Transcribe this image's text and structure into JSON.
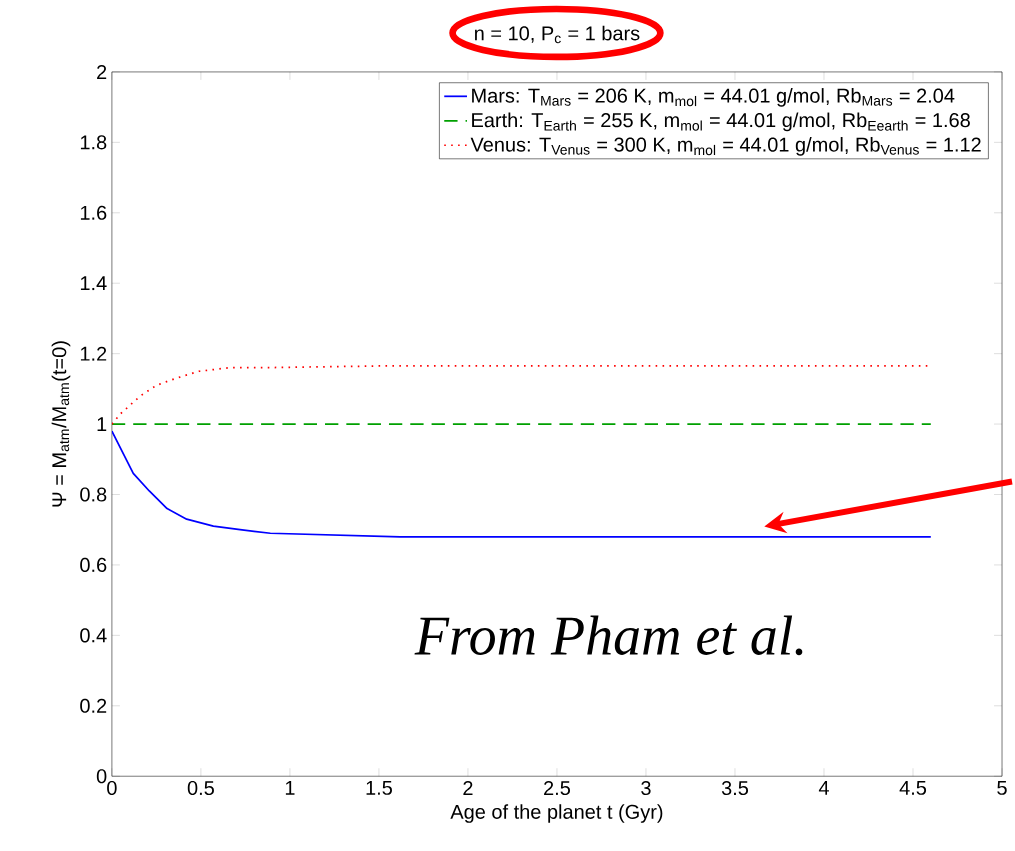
{
  "chart_data": {
    "type": "line",
    "title": "n = 10, P$_{c}$ = 1 bars",
    "xlabel": "Age of the planet t (Gyr)",
    "ylabel": "Ψ = M$_{atm}$/M$_{atm}$(t=0)",
    "xlim": [
      0,
      5
    ],
    "ylim": [
      0,
      2
    ],
    "xticks": [
      0,
      0.5,
      1,
      1.5,
      2,
      2.5,
      3,
      3.5,
      4,
      4.5,
      5
    ],
    "yticks": [
      0,
      0.2,
      0.4,
      0.6,
      0.8,
      1,
      1.2,
      1.4,
      1.6,
      1.8,
      2
    ],
    "legend": "top right",
    "series": [
      {
        "name": "Mars: T$_{Mars}$ = 206 K, m$_{mol}$ = 44.01 g/mol, Rb$_{Mars}$ = 2.04",
        "color": "#0000ff",
        "line_style": "solid",
        "x": [
          0,
          0.12,
          0.21,
          0.31,
          0.42,
          0.57,
          0.72,
          0.89,
          1.62,
          4.6
        ],
        "values": [
          0.98,
          0.86,
          0.81,
          0.76,
          0.73,
          0.71,
          0.7,
          0.69,
          0.68,
          0.68
        ]
      },
      {
        "name": "Earth: T$_{Earth}$ = 255 K, m$_{mol}$ = 44.01 g/mol, Rb$_{Eearth}$ = 1.68",
        "color": "#00a000",
        "line_style": "dashed",
        "x": [
          0,
          4.6
        ],
        "values": [
          1.0,
          1.0
        ]
      },
      {
        "name": "Venus: T$_{Venus}$ = 300 K, m$_{mol}$ = 44.01 g/mol, Rb$_{Venus}$ = 1.12",
        "color": "#ff0000",
        "line_style": "dotted",
        "x": [
          0,
          0.05,
          0.16,
          0.25,
          0.36,
          0.49,
          0.66,
          0.83,
          1.5,
          4.6
        ],
        "values": [
          1.0,
          1.03,
          1.08,
          1.11,
          1.13,
          1.15,
          1.16,
          1.16,
          1.165,
          1.165
        ]
      }
    ],
    "annotations": [
      "From Pham et al."
    ]
  }
}
